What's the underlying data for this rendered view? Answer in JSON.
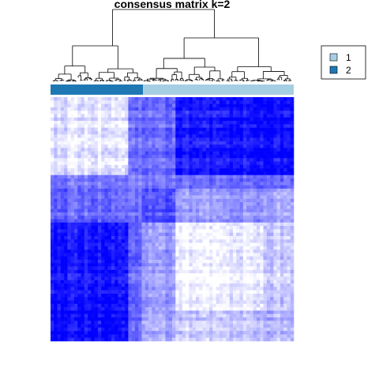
{
  "chart_data": {
    "type": "heatmap",
    "title": "consensus matrix k=2",
    "xlabel": "",
    "ylabel": "",
    "color_scale": {
      "low": "#ffffff",
      "high": "#0000ff",
      "range": [
        0,
        1
      ]
    },
    "legend": {
      "placement": "top-right",
      "entries": [
        {
          "label": "1",
          "color": "#a6cee3"
        },
        {
          "label": "2",
          "color": "#1f78b4"
        }
      ]
    },
    "class_bar": {
      "order": [
        "2",
        "1"
      ],
      "fractions": [
        0.38,
        0.62
      ]
    },
    "blocks": {
      "boundaries": [
        0,
        0.32,
        0.38,
        0.52,
        0.88,
        1.0
      ],
      "values": [
        [
          0.1,
          0.55,
          0.6,
          0.92,
          0.97
        ],
        [
          0.55,
          0.45,
          0.55,
          0.6,
          0.6
        ],
        [
          0.6,
          0.55,
          0.7,
          0.4,
          0.35
        ],
        [
          0.92,
          0.6,
          0.4,
          0.06,
          0.22
        ],
        [
          0.97,
          0.6,
          0.35,
          0.22,
          0.3
        ]
      ]
    },
    "dendrogram": true,
    "grid": false
  }
}
